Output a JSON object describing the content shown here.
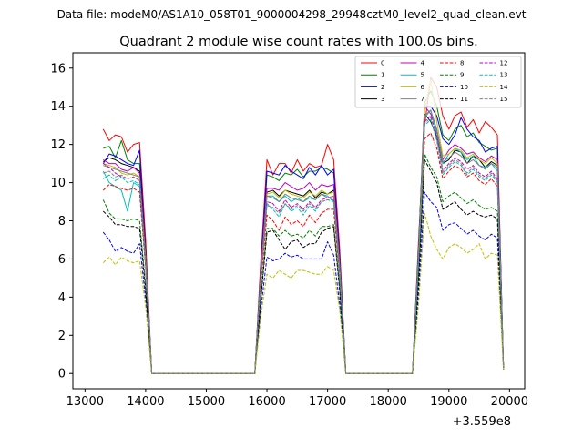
{
  "suptitle": "Data file: modeM0/AS1A10_058T01_9000004298_29948cztM0_level2_quad_clean.evt",
  "chart_data": {
    "type": "line",
    "title": "Quadrant 2 module wise count rates with 100.0s bins.",
    "xlabel": "",
    "ylabel": "",
    "x_offset_label": "+3.559e8",
    "xlim": [
      12800,
      20250
    ],
    "ylim": [
      -0.8,
      16.8
    ],
    "xticks": [
      13000,
      14000,
      15000,
      16000,
      17000,
      18000,
      19000,
      20000
    ],
    "yticks": [
      0,
      2,
      4,
      6,
      8,
      10,
      12,
      14,
      16
    ],
    "grid": false,
    "legend": {
      "placement": "top-right",
      "ncol": 4
    },
    "x": [
      13300,
      13400,
      13500,
      13600,
      13700,
      13800,
      13900,
      14000,
      14100,
      14200,
      14300,
      14400,
      14500,
      14600,
      14700,
      14800,
      14900,
      15000,
      15100,
      15200,
      15300,
      15400,
      15500,
      15600,
      15700,
      15800,
      15900,
      16000,
      16100,
      16200,
      16300,
      16400,
      16500,
      16600,
      16700,
      16800,
      16900,
      17000,
      17100,
      17200,
      17300,
      17400,
      17500,
      17600,
      17700,
      17800,
      17900,
      18000,
      18100,
      18200,
      18300,
      18400,
      18500,
      18600,
      18700,
      18800,
      18900,
      19000,
      19100,
      19200,
      19300,
      19400,
      19500,
      19600,
      19700,
      19800,
      19900
    ],
    "series": [
      {
        "name": "0",
        "color": "#ff0000",
        "dash": false,
        "values": [
          12.8,
          12.2,
          12.5,
          12.4,
          11.6,
          12.0,
          12.1,
          7.0,
          0,
          0,
          0,
          0,
          0,
          0,
          0,
          0,
          0,
          0,
          0,
          0,
          0,
          0,
          0,
          0,
          0,
          0,
          6.0,
          11.2,
          10.4,
          11.0,
          11.0,
          10.5,
          11.2,
          10.6,
          11.0,
          10.8,
          10.9,
          12.0,
          11.2,
          6.5,
          0,
          0,
          0,
          0,
          0,
          0,
          0,
          0,
          0,
          0,
          0,
          0,
          7.0,
          13.0,
          15.5,
          15.0,
          13.5,
          12.8,
          13.5,
          13.7,
          12.9,
          13.3,
          12.6,
          13.2,
          12.9,
          12.5,
          0.3
        ]
      },
      {
        "name": "1",
        "color": "#008000",
        "dash": false,
        "values": [
          11.8,
          11.9,
          11.3,
          12.2,
          11.2,
          11.0,
          11.0,
          6.5,
          0,
          0,
          0,
          0,
          0,
          0,
          0,
          0,
          0,
          0,
          0,
          0,
          0,
          0,
          0,
          0,
          0,
          0,
          5.6,
          10.4,
          10.3,
          10.1,
          10.5,
          10.4,
          10.7,
          10.3,
          10.6,
          10.6,
          10.8,
          10.7,
          10.5,
          6.1,
          0,
          0,
          0,
          0,
          0,
          0,
          0,
          0,
          0,
          0,
          0,
          0,
          6.7,
          14.2,
          14.8,
          14.0,
          12.5,
          12.2,
          12.8,
          13.0,
          12.4,
          12.6,
          12.1,
          11.9,
          11.7,
          11.8,
          0.3
        ]
      },
      {
        "name": "2",
        "color": "#0000ff",
        "dash": false,
        "values": [
          11.0,
          11.5,
          11.4,
          11.2,
          11.0,
          10.9,
          11.7,
          6.3,
          0,
          0,
          0,
          0,
          0,
          0,
          0,
          0,
          0,
          0,
          0,
          0,
          0,
          0,
          0,
          0,
          0,
          0,
          5.6,
          10.6,
          10.5,
          10.4,
          10.9,
          10.6,
          10.4,
          10.2,
          10.8,
          10.4,
          10.9,
          10.4,
          10.7,
          6.0,
          0,
          0,
          0,
          0,
          0,
          0,
          0,
          0,
          0,
          0,
          0,
          0,
          6.6,
          14.0,
          14.0,
          13.5,
          12.3,
          12.0,
          12.5,
          13.4,
          12.8,
          12.4,
          12.2,
          11.6,
          11.8,
          11.9,
          0.3
        ]
      },
      {
        "name": "3",
        "color": "#000000",
        "dash": false,
        "values": [
          11.1,
          11.3,
          11.2,
          11.0,
          10.9,
          10.8,
          10.6,
          6.2,
          0,
          0,
          0,
          0,
          0,
          0,
          0,
          0,
          0,
          0,
          0,
          0,
          0,
          0,
          0,
          0,
          0,
          0,
          5.4,
          9.5,
          9.6,
          9.3,
          9.6,
          9.5,
          9.4,
          9.3,
          9.6,
          9.2,
          9.5,
          9.4,
          9.6,
          5.6,
          0,
          0,
          0,
          0,
          0,
          0,
          0,
          0,
          0,
          0,
          0,
          0,
          6.3,
          13.6,
          13.2,
          12.4,
          11.0,
          11.2,
          11.7,
          11.6,
          11.0,
          11.4,
          11.2,
          10.8,
          11.1,
          10.9,
          0.3
        ]
      },
      {
        "name": "4",
        "color": "#bf00bf",
        "dash": false,
        "values": [
          11.2,
          11.0,
          11.0,
          10.7,
          10.6,
          10.8,
          10.5,
          6.1,
          0,
          0,
          0,
          0,
          0,
          0,
          0,
          0,
          0,
          0,
          0,
          0,
          0,
          0,
          0,
          0,
          0,
          0,
          5.4,
          9.7,
          9.7,
          9.6,
          10.0,
          9.8,
          9.6,
          9.7,
          10.0,
          9.6,
          9.9,
          9.8,
          9.9,
          5.7,
          0,
          0,
          0,
          0,
          0,
          0,
          0,
          0,
          0,
          0,
          0,
          0,
          6.4,
          14.0,
          13.6,
          12.8,
          11.2,
          11.7,
          12.0,
          11.8,
          11.5,
          11.6,
          11.3,
          11.1,
          11.4,
          11.2,
          0.3
        ]
      },
      {
        "name": "5",
        "color": "#00bfbf",
        "dash": false,
        "values": [
          10.6,
          10.0,
          9.8,
          9.6,
          8.5,
          10.0,
          9.8,
          5.6,
          0,
          0,
          0,
          0,
          0,
          0,
          0,
          0,
          0,
          0,
          0,
          0,
          0,
          0,
          0,
          0,
          0,
          0,
          5.1,
          9.3,
          9.3,
          9.0,
          9.3,
          9.0,
          9.2,
          9.0,
          9.2,
          9.1,
          9.4,
          9.3,
          9.0,
          5.4,
          0,
          0,
          0,
          0,
          0,
          0,
          0,
          0,
          0,
          0,
          0,
          0,
          6.1,
          13.4,
          13.8,
          12.6,
          11.0,
          11.5,
          11.8,
          11.6,
          11.2,
          11.4,
          10.9,
          10.8,
          11.0,
          10.6,
          0.3
        ]
      },
      {
        "name": "6",
        "color": "#bfbf00",
        "dash": false,
        "values": [
          11.0,
          10.9,
          10.8,
          10.5,
          10.4,
          10.5,
          10.3,
          6.0,
          0,
          0,
          0,
          0,
          0,
          0,
          0,
          0,
          0,
          0,
          0,
          0,
          0,
          0,
          0,
          0,
          0,
          0,
          5.3,
          9.4,
          9.5,
          9.2,
          9.6,
          9.4,
          9.3,
          9.2,
          9.5,
          9.3,
          9.6,
          9.4,
          9.5,
          5.5,
          0,
          0,
          0,
          0,
          0,
          0,
          0,
          0,
          0,
          0,
          0,
          0,
          6.3,
          13.8,
          15.4,
          13.2,
          11.4,
          11.5,
          11.8,
          11.7,
          11.3,
          11.5,
          11.2,
          11.0,
          11.3,
          11.0,
          0.3
        ]
      },
      {
        "name": "7",
        "color": "#808080",
        "dash": false,
        "values": [
          10.9,
          10.8,
          10.7,
          10.6,
          10.5,
          10.4,
          10.3,
          6.0,
          0,
          0,
          0,
          0,
          0,
          0,
          0,
          0,
          0,
          0,
          0,
          0,
          0,
          0,
          0,
          0,
          0,
          0,
          5.2,
          9.3,
          9.2,
          9.0,
          9.4,
          9.2,
          9.1,
          9.0,
          9.3,
          9.1,
          9.4,
          9.2,
          9.3,
          5.4,
          0,
          0,
          0,
          0,
          0,
          0,
          0,
          0,
          0,
          0,
          0,
          0,
          6.2,
          13.5,
          13.8,
          12.8,
          11.1,
          11.3,
          11.6,
          11.4,
          11.0,
          11.2,
          10.9,
          10.7,
          11.0,
          10.8,
          0.3
        ]
      },
      {
        "name": "8",
        "color": "#ff0000",
        "dash": true,
        "values": [
          9.6,
          9.9,
          9.8,
          9.7,
          9.6,
          9.7,
          9.5,
          5.5,
          0,
          0,
          0,
          0,
          0,
          0,
          0,
          0,
          0,
          0,
          0,
          0,
          0,
          0,
          0,
          0,
          0,
          0,
          4.7,
          8.3,
          8.0,
          7.5,
          8.2,
          7.8,
          8.0,
          7.7,
          8.3,
          7.9,
          8.4,
          8.6,
          8.6,
          5.0,
          0,
          0,
          0,
          0,
          0,
          0,
          0,
          0,
          0,
          0,
          0,
          0,
          5.6,
          12.3,
          12.6,
          11.8,
          10.2,
          10.6,
          10.9,
          10.7,
          10.3,
          10.5,
          10.1,
          9.9,
          10.2,
          9.8,
          0.3
        ]
      },
      {
        "name": "9",
        "color": "#008000",
        "dash": true,
        "values": [
          9.1,
          8.4,
          8.1,
          8.1,
          8.0,
          8.1,
          8.0,
          4.6,
          0,
          0,
          0,
          0,
          0,
          0,
          0,
          0,
          0,
          0,
          0,
          0,
          0,
          0,
          0,
          0,
          0,
          0,
          4.1,
          7.6,
          7.6,
          7.2,
          7.5,
          7.2,
          7.3,
          7.1,
          7.5,
          7.2,
          7.7,
          7.7,
          7.8,
          4.5,
          0,
          0,
          0,
          0,
          0,
          0,
          0,
          0,
          0,
          0,
          0,
          0,
          5.1,
          11.5,
          10.8,
          10.3,
          9.0,
          9.3,
          9.5,
          9.2,
          8.9,
          9.1,
          8.8,
          8.6,
          8.7,
          8.5,
          0.3
        ]
      },
      {
        "name": "10",
        "color": "#0000ff",
        "dash": true,
        "values": [
          7.4,
          7.0,
          6.4,
          6.6,
          6.4,
          6.3,
          6.8,
          3.9,
          0,
          0,
          0,
          0,
          0,
          0,
          0,
          0,
          0,
          0,
          0,
          0,
          0,
          0,
          0,
          0,
          0,
          0,
          3.4,
          6.1,
          5.9,
          6.0,
          6.3,
          6.1,
          6.2,
          6.0,
          6.0,
          6.0,
          6.0,
          6.9,
          6.2,
          3.6,
          0,
          0,
          0,
          0,
          0,
          0,
          0,
          0,
          0,
          0,
          0,
          0,
          4.2,
          9.5,
          9.0,
          8.7,
          7.5,
          7.8,
          7.9,
          7.6,
          7.3,
          7.5,
          7.2,
          7.0,
          7.3,
          7.1,
          0.2
        ]
      },
      {
        "name": "11",
        "color": "#000000",
        "dash": true,
        "values": [
          8.5,
          8.2,
          7.8,
          7.8,
          7.7,
          7.7,
          7.6,
          4.4,
          0,
          0,
          0,
          0,
          0,
          0,
          0,
          0,
          0,
          0,
          0,
          0,
          0,
          0,
          0,
          0,
          0,
          0,
          3.9,
          7.4,
          7.5,
          7.0,
          6.5,
          6.9,
          7.0,
          6.6,
          6.8,
          6.8,
          7.4,
          7.6,
          7.7,
          4.3,
          0,
          0,
          0,
          0,
          0,
          0,
          0,
          0,
          0,
          0,
          0,
          0,
          4.8,
          11.2,
          10.6,
          10.0,
          8.6,
          8.8,
          9.0,
          8.6,
          8.3,
          8.5,
          8.3,
          8.2,
          8.3,
          8.1,
          0.2
        ]
      },
      {
        "name": "12",
        "color": "#bf00bf",
        "dash": true,
        "values": [
          11.0,
          10.8,
          10.5,
          10.3,
          10.2,
          10.3,
          10.1,
          5.9,
          0,
          0,
          0,
          0,
          0,
          0,
          0,
          0,
          0,
          0,
          0,
          0,
          0,
          0,
          0,
          0,
          0,
          0,
          5.1,
          9.0,
          8.9,
          8.5,
          9.1,
          8.7,
          8.9,
          8.6,
          9.0,
          8.7,
          9.1,
          9.2,
          9.2,
          5.3,
          0,
          0,
          0,
          0,
          0,
          0,
          0,
          0,
          0,
          0,
          0,
          0,
          6.0,
          13.2,
          13.5,
          12.5,
          10.6,
          11.0,
          11.3,
          11.1,
          10.7,
          10.9,
          10.5,
          10.3,
          10.6,
          10.2,
          0.3
        ]
      },
      {
        "name": "13",
        "color": "#00bfbf",
        "dash": true,
        "values": [
          10.2,
          10.4,
          10.1,
          10.3,
          10.0,
          10.1,
          9.9,
          5.8,
          0,
          0,
          0,
          0,
          0,
          0,
          0,
          0,
          0,
          0,
          0,
          0,
          0,
          0,
          0,
          0,
          0,
          0,
          5.0,
          8.9,
          8.6,
          8.2,
          8.9,
          8.5,
          8.7,
          8.3,
          8.8,
          8.5,
          9.0,
          9.1,
          9.0,
          5.2,
          0,
          0,
          0,
          0,
          0,
          0,
          0,
          0,
          0,
          0,
          0,
          0,
          5.9,
          13.0,
          13.3,
          12.2,
          10.4,
          10.8,
          11.1,
          10.9,
          10.4,
          10.7,
          10.3,
          10.1,
          10.4,
          10.0,
          0.3
        ]
      },
      {
        "name": "14",
        "color": "#bfbf00",
        "dash": true,
        "values": [
          5.8,
          6.1,
          5.7,
          6.1,
          5.9,
          5.8,
          5.9,
          3.5,
          0,
          0,
          0,
          0,
          0,
          0,
          0,
          0,
          0,
          0,
          0,
          0,
          0,
          0,
          0,
          0,
          0,
          0,
          3.0,
          5.2,
          5.0,
          5.4,
          5.2,
          5.0,
          5.4,
          5.4,
          5.3,
          5.2,
          5.2,
          5.6,
          5.4,
          3.3,
          0,
          0,
          0,
          0,
          0,
          0,
          0,
          0,
          0,
          0,
          0,
          0,
          3.6,
          8.4,
          7.2,
          6.5,
          6.0,
          6.6,
          6.8,
          6.6,
          6.3,
          6.5,
          6.8,
          6.0,
          6.3,
          6.2,
          0.2
        ]
      },
      {
        "name": "15",
        "color": "#808080",
        "dash": true,
        "values": [
          10.5,
          10.6,
          10.3,
          10.4,
          10.2,
          10.3,
          10.1,
          5.8,
          0,
          0,
          0,
          0,
          0,
          0,
          0,
          0,
          0,
          0,
          0,
          0,
          0,
          0,
          0,
          0,
          0,
          0,
          5.0,
          8.8,
          8.7,
          8.4,
          8.9,
          8.6,
          8.8,
          8.5,
          8.9,
          8.6,
          9.0,
          9.1,
          9.1,
          5.3,
          0,
          0,
          0,
          0,
          0,
          0,
          0,
          0,
          0,
          0,
          0,
          0,
          6.0,
          13.1,
          13.4,
          12.3,
          10.5,
          10.9,
          11.2,
          11.0,
          10.5,
          10.8,
          10.4,
          10.2,
          10.5,
          10.1,
          0.3
        ]
      }
    ]
  }
}
